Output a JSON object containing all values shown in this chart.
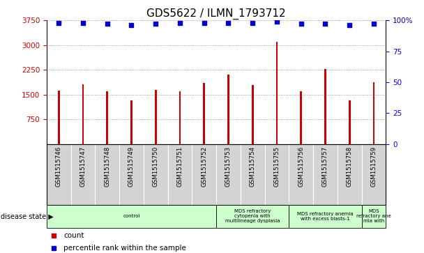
{
  "title": "GDS5622 / ILMN_1793712",
  "samples": [
    "GSM1515746",
    "GSM1515747",
    "GSM1515748",
    "GSM1515749",
    "GSM1515750",
    "GSM1515751",
    "GSM1515752",
    "GSM1515753",
    "GSM1515754",
    "GSM1515755",
    "GSM1515756",
    "GSM1515757",
    "GSM1515758",
    "GSM1515759"
  ],
  "counts": [
    1620,
    1820,
    1600,
    1330,
    1640,
    1610,
    1850,
    2100,
    1800,
    3090,
    1600,
    2270,
    1320,
    1870
  ],
  "percentile_ranks": [
    98,
    98,
    97,
    96,
    97,
    98,
    98,
    98,
    98,
    99,
    97,
    97,
    96,
    97
  ],
  "bar_color": "#cc0000",
  "dot_color": "#0000cc",
  "ylim_left": [
    0,
    3750
  ],
  "yticks_left": [
    750,
    1500,
    2250,
    3000,
    3750
  ],
  "ylim_right": [
    0,
    100
  ],
  "yticks_right": [
    0,
    25,
    50,
    75,
    100
  ],
  "disease_state_label": "disease state",
  "legend_count_label": "count",
  "legend_percentile_label": "percentile rank within the sample",
  "bar_width": 0.08,
  "tick_label_bg": "#d3d3d3",
  "title_fontsize": 11,
  "axis_label_color_left": "#cc0000",
  "axis_label_color_right": "#0000cc",
  "group_edges": [
    [
      0,
      7,
      "control"
    ],
    [
      7,
      10,
      "MDS refractory\ncytopenia with\nmultilineage dysplasia"
    ],
    [
      10,
      13,
      "MDS refractory anemia\nwith excess blasts-1"
    ],
    [
      13,
      14,
      "MDS\nrefractory ane\nmia with"
    ]
  ],
  "group_color": "#ccffcc"
}
